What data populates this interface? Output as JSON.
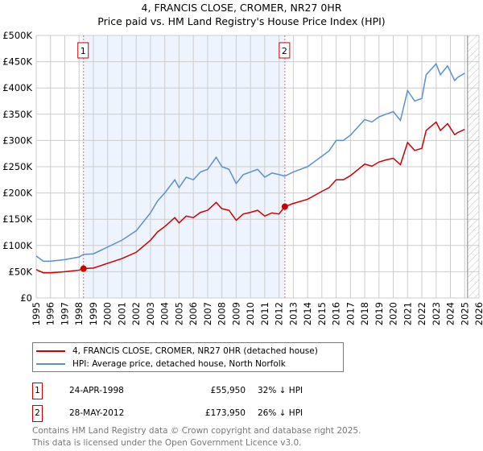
{
  "chart_data": {
    "type": "line",
    "title": "4, FRANCIS CLOSE, CROMER, NR27 0HR",
    "subtitle": "Price paid vs. HM Land Registry's House Price Index (HPI)",
    "xlabel": "",
    "ylabel": "",
    "xlim": [
      1995,
      2026
    ],
    "ylim": [
      0,
      500000
    ],
    "value_unit": "GBP thousands",
    "y_ticks": [
      "£0",
      "£50K",
      "£100K",
      "£150K",
      "£200K",
      "£250K",
      "£300K",
      "£350K",
      "£400K",
      "£450K",
      "£500K"
    ],
    "x_ticks": [
      "1995",
      "1996",
      "1997",
      "1998",
      "1999",
      "2000",
      "2001",
      "2002",
      "2003",
      "2004",
      "2005",
      "2006",
      "2007",
      "2008",
      "2009",
      "2010",
      "2011",
      "2012",
      "2013",
      "2014",
      "2015",
      "2016",
      "2017",
      "2018",
      "2019",
      "2020",
      "2021",
      "2022",
      "2023",
      "2024",
      "2025",
      "2026"
    ],
    "grid": true,
    "x": [
      1995,
      1995.5,
      1996,
      1997,
      1998,
      1998.3,
      1999,
      2000,
      2001,
      2002,
      2003,
      2003.5,
      2004,
      2004.7,
      2005,
      2005.5,
      2006,
      2006.5,
      2007,
      2007.6,
      2008,
      2008.5,
      2009,
      2009.5,
      2010,
      2010.5,
      2011,
      2011.5,
      2012,
      2012.4,
      2013,
      2014,
      2015,
      2015.5,
      2016,
      2016.5,
      2017,
      2018,
      2018.5,
      2019,
      2019.5,
      2020,
      2020.5,
      2021,
      2021.5,
      2022,
      2022.3,
      2023,
      2023.3,
      2023.8,
      2024.3,
      2024.5,
      2025
    ],
    "series": [
      {
        "name": "4, FRANCIS CLOSE, CROMER, NR27 0HR (detached house)",
        "color": "#cc0000",
        "values": [
          54,
          48,
          48,
          50,
          53,
          56,
          57,
          66,
          75,
          87,
          110,
          126,
          136,
          153,
          143,
          156,
          153,
          163,
          167,
          182,
          170,
          167,
          148,
          160,
          163,
          167,
          156,
          162,
          160,
          174,
          180,
          188,
          203,
          210,
          225,
          225,
          233,
          255,
          251,
          259,
          263,
          266,
          254,
          296,
          281,
          285,
          319,
          335,
          319,
          332,
          311,
          315,
          321
        ]
      },
      {
        "name": "HPI: Average price, detached house, North Norfolk",
        "color": "#5b8fd0",
        "values": [
          80,
          70,
          70,
          73,
          78,
          83,
          84,
          97,
          110,
          128,
          162,
          185,
          200,
          225,
          210,
          230,
          225,
          240,
          245,
          268,
          250,
          245,
          218,
          235,
          240,
          245,
          230,
          238,
          235,
          232,
          240,
          250,
          270,
          280,
          300,
          300,
          310,
          340,
          335,
          345,
          350,
          355,
          338,
          395,
          375,
          380,
          425,
          446,
          425,
          442,
          414,
          420,
          428
        ]
      }
    ],
    "shaded_range": [
      1998.31,
      2012.41
    ],
    "forecast_hatch_from": 2025.2,
    "annotations": [
      {
        "label": "1",
        "x": 1998.31,
        "value": 55950
      },
      {
        "label": "2",
        "x": 2012.41,
        "value": 173950
      }
    ]
  },
  "legend": {
    "red": "4, FRANCIS CLOSE, CROMER, NR27 0HR (detached house)",
    "blue": "HPI: Average price, detached house, North Norfolk"
  },
  "sales": [
    {
      "num": "1",
      "date": "24-APR-1998",
      "price": "£55,950",
      "hpi": "32% ↓ HPI"
    },
    {
      "num": "2",
      "date": "28-MAY-2012",
      "price": "£173,950",
      "hpi": "26% ↓ HPI"
    }
  ],
  "footer": [
    "Contains HM Land Registry data © Crown copyright and database right 2025.",
    "This data is licensed under the Open Government Licence v3.0."
  ]
}
